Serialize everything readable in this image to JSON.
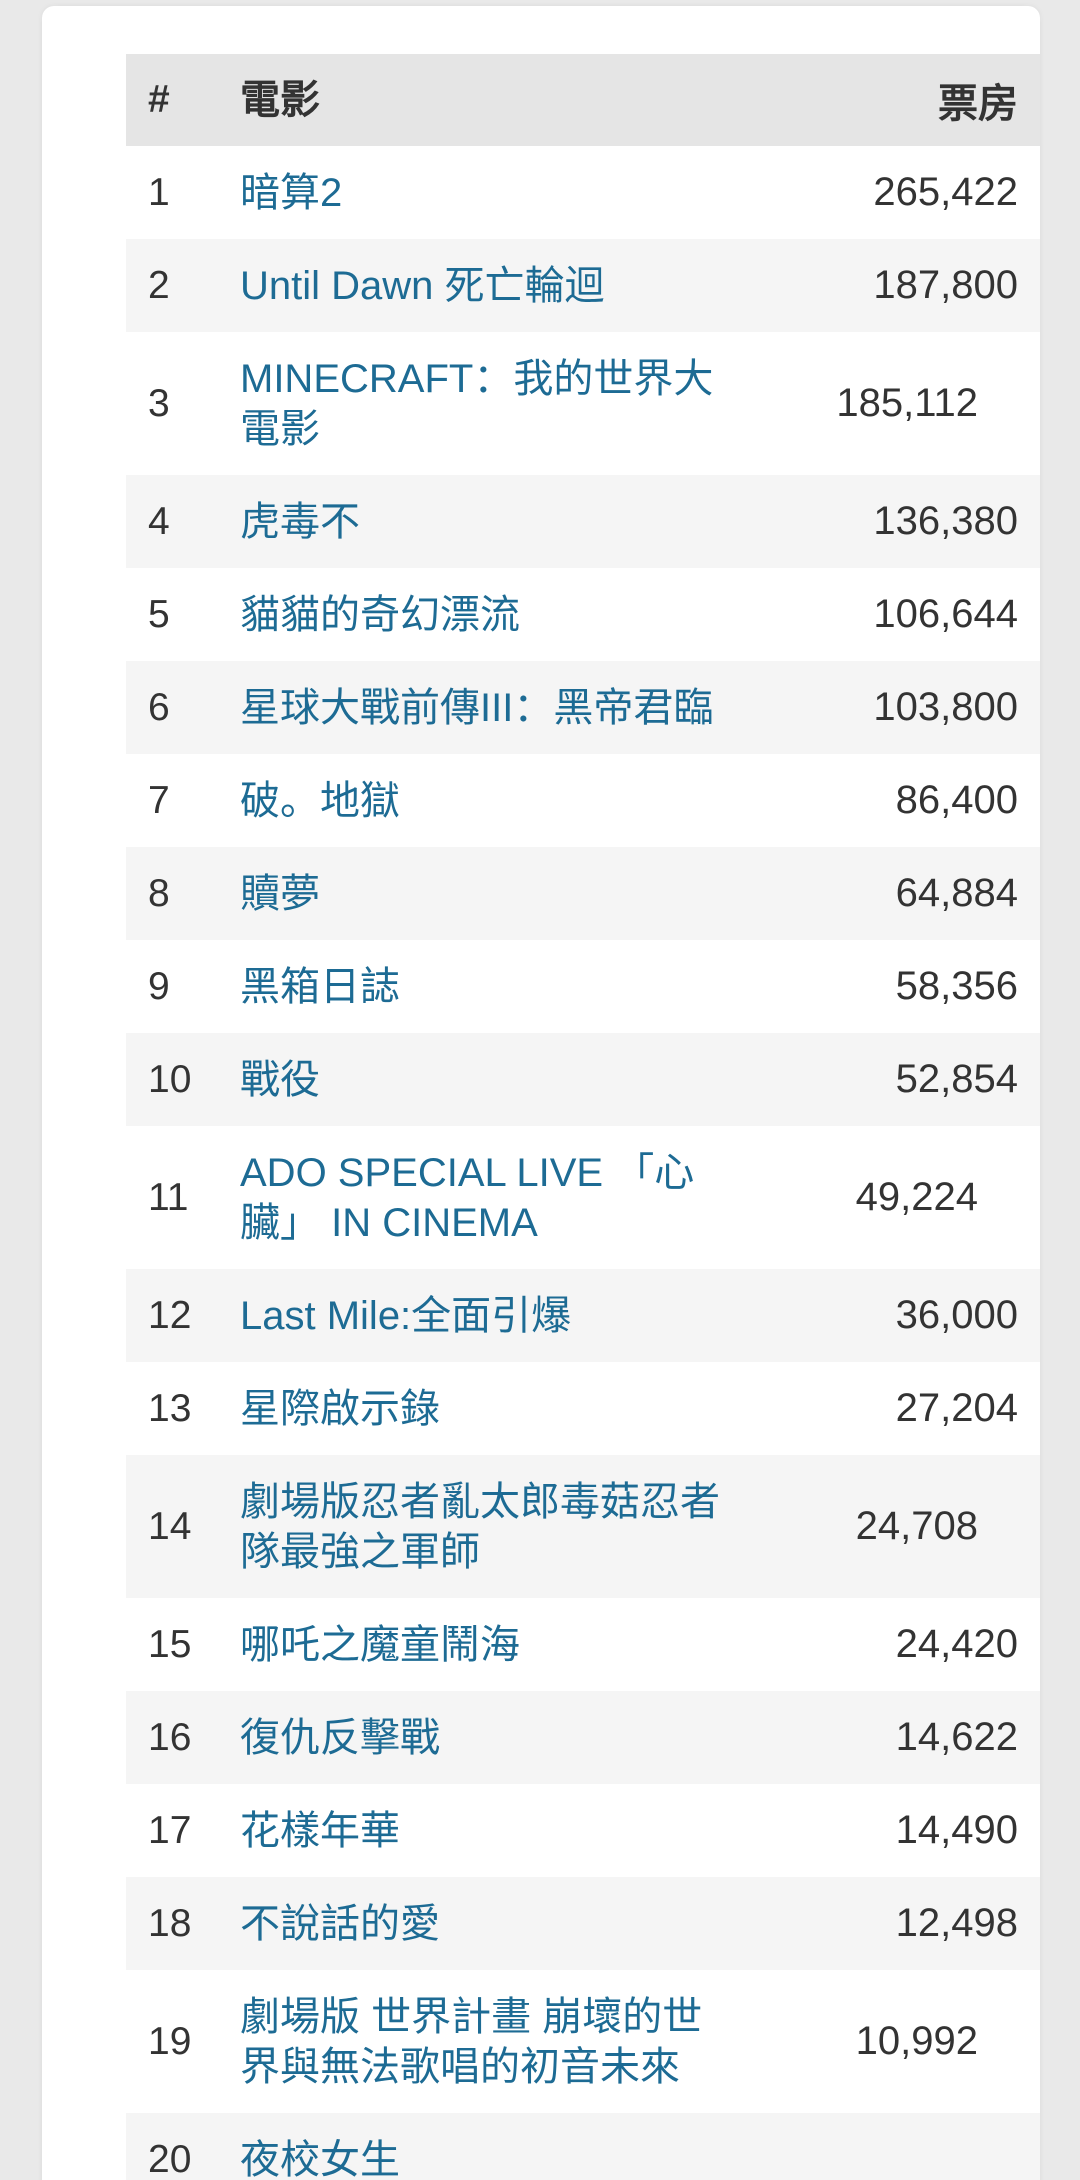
{
  "table": {
    "headers": {
      "rank": "#",
      "title": "電影",
      "gross": "票房"
    },
    "rows": [
      {
        "rank": "1",
        "title": "暗算2",
        "gross": "265,422"
      },
      {
        "rank": "2",
        "title": "Until Dawn 死亡輪迴",
        "gross": "187,800"
      },
      {
        "rank": "3",
        "title": "MINECRAFT：我的世界大電影",
        "gross": "185,112"
      },
      {
        "rank": "4",
        "title": "虎毒不",
        "gross": "136,380"
      },
      {
        "rank": "5",
        "title": "貓貓的奇幻漂流",
        "gross": "106,644"
      },
      {
        "rank": "6",
        "title": "星球大戰前傳III：黑帝君臨",
        "gross": "103,800"
      },
      {
        "rank": "7",
        "title": "破。地獄",
        "gross": "86,400"
      },
      {
        "rank": "8",
        "title": "贖夢",
        "gross": "64,884"
      },
      {
        "rank": "9",
        "title": "黑箱日誌",
        "gross": "58,356"
      },
      {
        "rank": "10",
        "title": "戰役",
        "gross": "52,854"
      },
      {
        "rank": "11",
        "title": "ADO SPECIAL LIVE 「心臟」 IN CINEMA",
        "gross": "49,224"
      },
      {
        "rank": "12",
        "title": "Last Mile:全面引爆",
        "gross": "36,000"
      },
      {
        "rank": "13",
        "title": "星際啟示錄",
        "gross": "27,204"
      },
      {
        "rank": "14",
        "title": "劇場版忍者亂太郎毒菇忍者隊最強之軍師",
        "gross": "24,708"
      },
      {
        "rank": "15",
        "title": "哪吒之魔童鬧海",
        "gross": "24,420"
      },
      {
        "rank": "16",
        "title": "復仇反擊戰",
        "gross": "14,622"
      },
      {
        "rank": "17",
        "title": "花樣年華",
        "gross": "14,490"
      },
      {
        "rank": "18",
        "title": "不說話的愛",
        "gross": "12,498"
      },
      {
        "rank": "19",
        "title": "劇場版 世界計畫 崩壞的世界與無法歌唱的初音未來",
        "gross": "10,992"
      },
      {
        "rank": "20",
        "title": "夜校女生",
        "gross": ""
      }
    ]
  },
  "colors": {
    "link": "#1d6b94",
    "header_bg": "#e5e5e5",
    "stripe_bg": "#f5f5f5"
  }
}
